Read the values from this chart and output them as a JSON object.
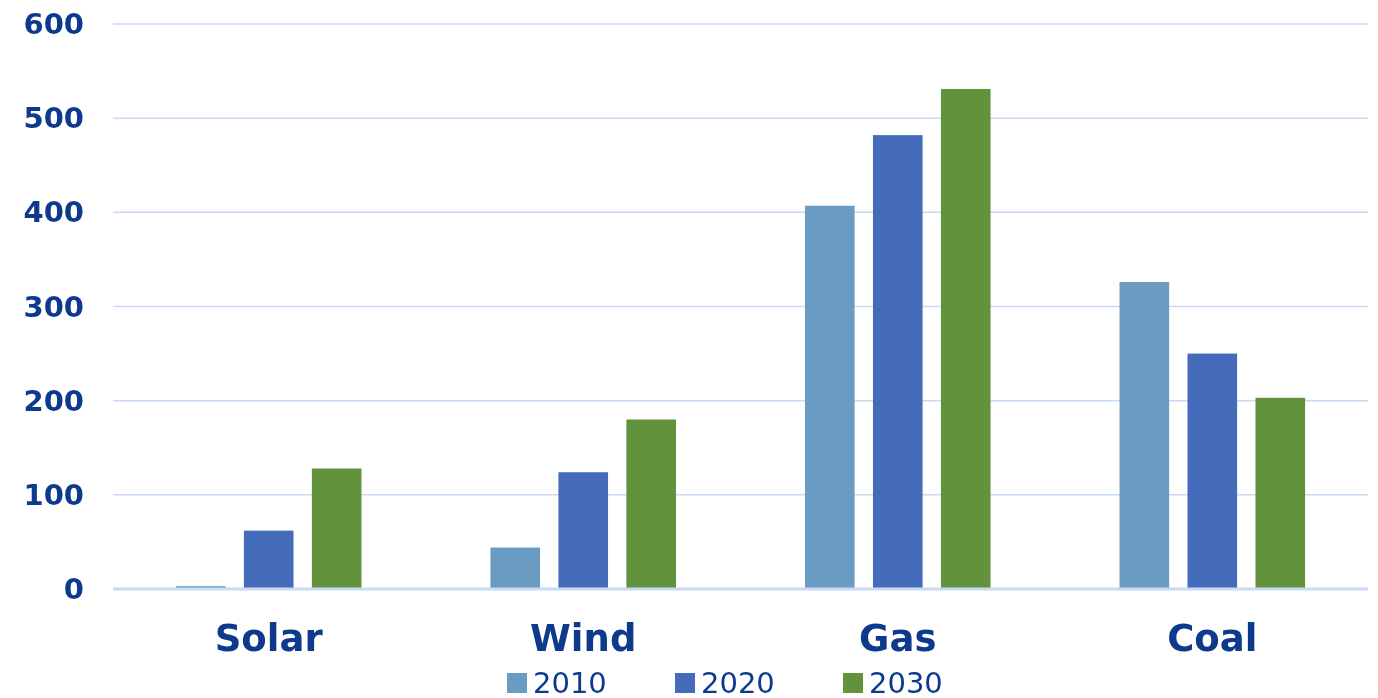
{
  "chart_data": {
    "type": "bar",
    "categories": [
      "Solar",
      "Wind",
      "Gas",
      "Coal"
    ],
    "series": [
      {
        "name": "2010",
        "color": "#6a9bc3",
        "values": [
          3,
          44,
          407,
          326
        ]
      },
      {
        "name": "2020",
        "color": "#436bb9",
        "values": [
          62,
          124,
          482,
          250
        ]
      },
      {
        "name": "2030",
        "color": "#62923c",
        "values": [
          128,
          180,
          531,
          203
        ]
      }
    ],
    "ylim": [
      0,
      600
    ],
    "yticks": [
      0,
      100,
      200,
      300,
      400,
      500,
      600
    ],
    "grid": "y",
    "legend": "bottom"
  }
}
